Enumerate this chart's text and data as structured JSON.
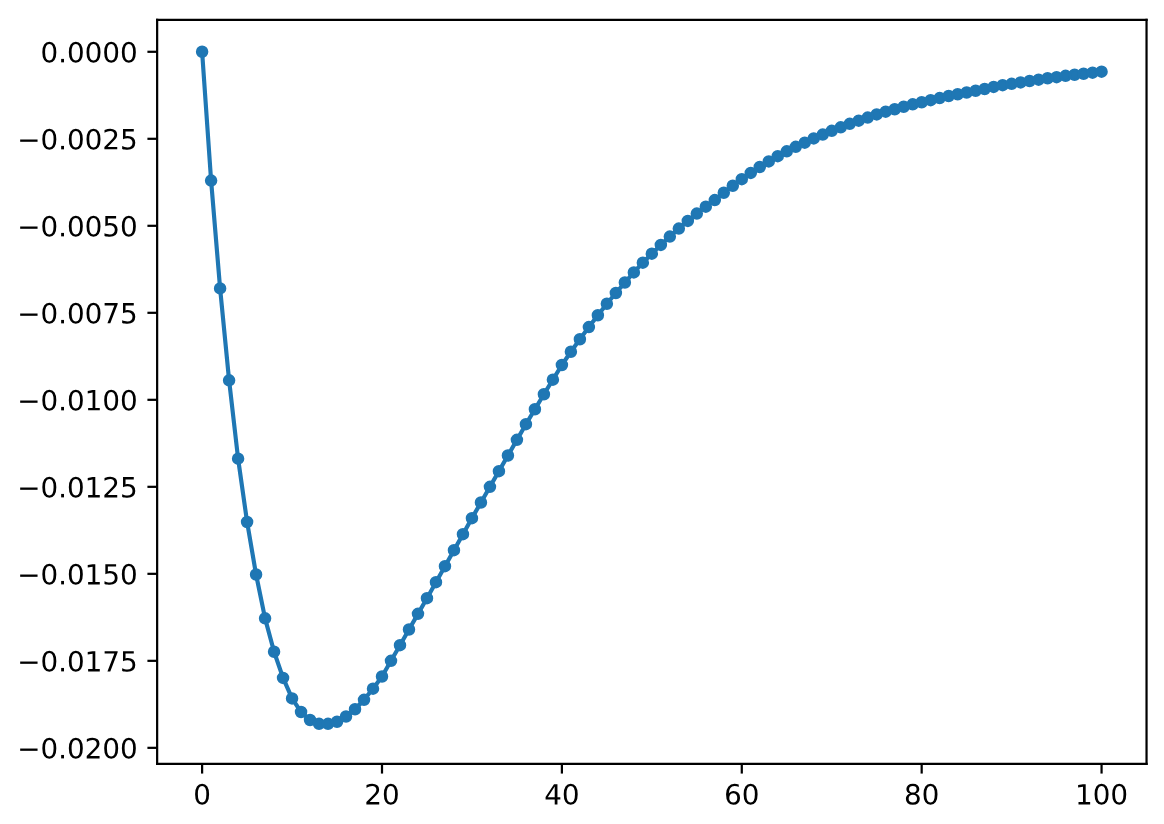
{
  "chart_data": {
    "type": "line",
    "marker": "circle",
    "line_style": "solid",
    "grid": false,
    "legend": false,
    "x": [
      0,
      1,
      2,
      3,
      4,
      5,
      6,
      7,
      8,
      9,
      10,
      11,
      12,
      13,
      14,
      15,
      16,
      17,
      18,
      19,
      20,
      21,
      22,
      23,
      24,
      25,
      26,
      27,
      28,
      29,
      30,
      31,
      32,
      33,
      34,
      35,
      36,
      37,
      38,
      39,
      40,
      41,
      42,
      43,
      44,
      45,
      46,
      47,
      48,
      49,
      50,
      51,
      52,
      53,
      54,
      55,
      56,
      57,
      58,
      59,
      60,
      61,
      62,
      63,
      64,
      65,
      66,
      67,
      68,
      69,
      70,
      71,
      72,
      73,
      74,
      75,
      76,
      77,
      78,
      79,
      80,
      81,
      82,
      83,
      84,
      85,
      86,
      87,
      88,
      89,
      90,
      91,
      92,
      93,
      94,
      95,
      96,
      97,
      98,
      99,
      100
    ],
    "series": [
      {
        "color": "#1f77b4",
        "values": [
          0,
          -0.0037,
          -0.0068,
          -0.00944,
          -0.01169,
          -0.01351,
          -0.01502,
          -0.01628,
          -0.01724,
          -0.01799,
          -0.01858,
          -0.01897,
          -0.0192,
          -0.01931,
          -0.01931,
          -0.01925,
          -0.0191,
          -0.01889,
          -0.01862,
          -0.0183,
          -0.01795,
          -0.0175,
          -0.01705,
          -0.0166,
          -0.01615,
          -0.0157,
          -0.01524,
          -0.01478,
          -0.01432,
          -0.01386,
          -0.0134,
          -0.01295,
          -0.0125,
          -0.01205,
          -0.0116,
          -0.01115,
          -0.0107,
          -0.01027,
          -0.00984,
          -0.00942,
          -0.009,
          -0.00862,
          -0.00826,
          -0.00791,
          -0.00757,
          -0.00724,
          -0.00693,
          -0.00663,
          -0.00634,
          -0.00606,
          -0.0058,
          -0.00555,
          -0.00531,
          -0.00508,
          -0.00486,
          -0.00465,
          -0.00445,
          -0.00426,
          -0.00405,
          -0.00385,
          -0.00366,
          -0.00348,
          -0.00331,
          -0.00315,
          -0.003,
          -0.00286,
          -0.00273,
          -0.00261,
          -0.00249,
          -0.00238,
          -0.00227,
          -0.00217,
          -0.00207,
          -0.00198,
          -0.00189,
          -0.0018,
          -0.00172,
          -0.00165,
          -0.00158,
          -0.00151,
          -0.00145,
          -0.00139,
          -0.00133,
          -0.00127,
          -0.00122,
          -0.00117,
          -0.00112,
          -0.00107,
          -0.00101,
          -0.00096,
          -0.00092,
          -0.00088,
          -0.00084,
          -0.0008,
          -0.00076,
          -0.00073,
          -0.00069,
          -0.00066,
          -0.00063,
          -0.0006,
          -0.00057
        ]
      }
    ],
    "xlim": [
      -5,
      105
    ],
    "xticks": [
      0,
      20,
      40,
      60,
      80,
      100
    ],
    "ylim": [
      -0.02046,
      0.00092
    ],
    "yticks": [
      {
        "value": 0,
        "label": "0.0000"
      },
      {
        "value": -0.0025,
        "label": "−0.0025"
      },
      {
        "value": -0.005,
        "label": "−0.0050"
      },
      {
        "value": -0.0075,
        "label": "−0.0075"
      },
      {
        "value": -0.01,
        "label": "−0.0100"
      },
      {
        "value": -0.0125,
        "label": "−0.0125"
      },
      {
        "value": -0.015,
        "label": "−0.0150"
      },
      {
        "value": -0.0175,
        "label": "−0.0175"
      },
      {
        "value": -0.02,
        "label": "−0.0200"
      }
    ]
  }
}
